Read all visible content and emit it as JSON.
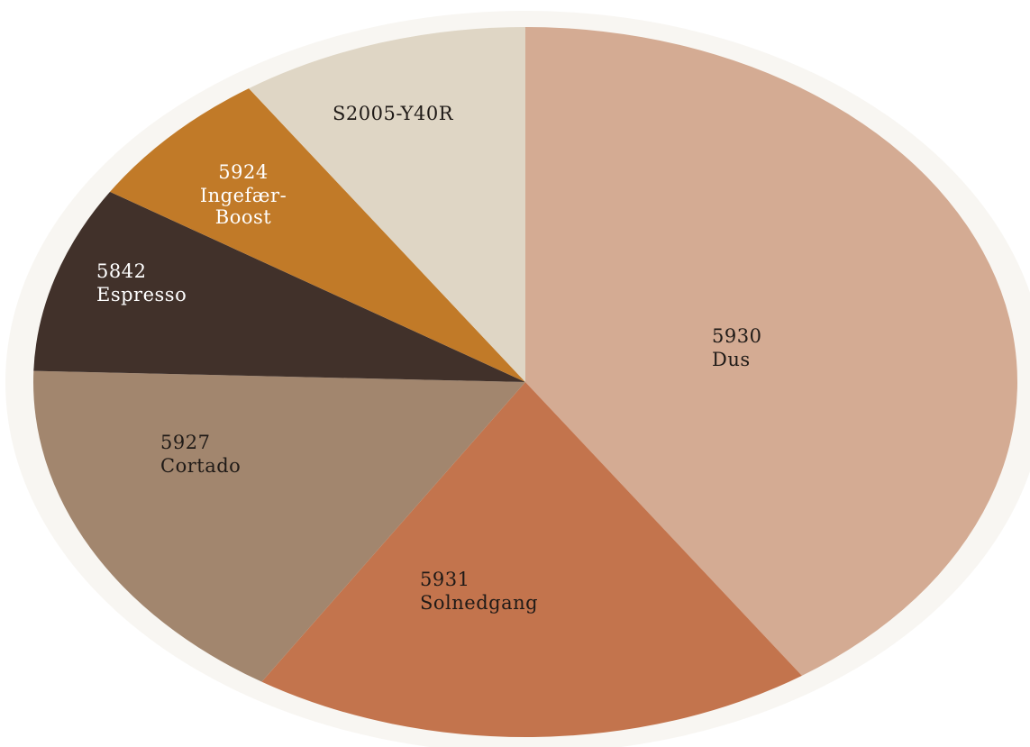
{
  "chart_data": {
    "type": "pie",
    "slices": [
      {
        "code": "5930",
        "name": "Dus",
        "value": 40.5,
        "color": "#D4AB93",
        "label_color": "#1f1a17"
      },
      {
        "code": "5931",
        "name": "Solnedgang",
        "value": 18.5,
        "color": "#C3744D",
        "label_color": "#1f1a17"
      },
      {
        "code": "5927",
        "name": "Cortado",
        "value": 16.5,
        "color": "#A2866E",
        "label_color": "#1f1a17"
      },
      {
        "code": "5842",
        "name": "Espresso",
        "value": 8.5,
        "color": "#41312A",
        "label_color": "#ffffff"
      },
      {
        "code": "5924",
        "name": "Ingefær-Boost",
        "value": 6.5,
        "color": "#C17A28",
        "label_color": "#ffffff"
      },
      {
        "code": "S2005-Y40R",
        "name": "",
        "value": 9.5,
        "color": "#DFD6C5",
        "label_color": "#1f1a17"
      }
    ],
    "start_angle_deg": 0,
    "direction": "clockwise",
    "legend": "none",
    "title": ""
  }
}
